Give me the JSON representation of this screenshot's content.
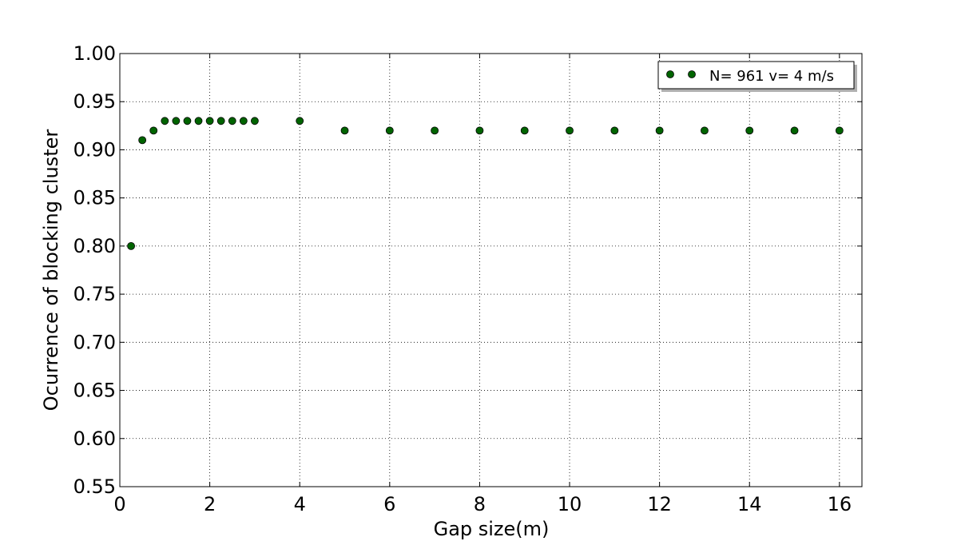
{
  "chart_data": {
    "type": "scatter",
    "xlabel": "Gap size(m)",
    "ylabel": "Ocurrence of blocking cluster",
    "xlim": [
      0,
      16.5
    ],
    "ylim": [
      0.55,
      1.0
    ],
    "xticks": [
      0,
      2,
      4,
      6,
      8,
      10,
      12,
      14,
      16
    ],
    "xtick_labels": [
      "0",
      "2",
      "4",
      "6",
      "8",
      "10",
      "12",
      "14",
      "16"
    ],
    "yticks": [
      0.55,
      0.6,
      0.65,
      0.7,
      0.75,
      0.8,
      0.85,
      0.9,
      0.95,
      1.0
    ],
    "ytick_labels": [
      "0.55",
      "0.60",
      "0.65",
      "0.70",
      "0.75",
      "0.80",
      "0.85",
      "0.90",
      "0.95",
      "1.00"
    ],
    "grid": true,
    "legend_position": "top-right",
    "series": [
      {
        "name": "N= 961 v= 4 m/s",
        "color": "#006400",
        "marker": "circle",
        "x": [
          0.25,
          0.5,
          0.75,
          1.0,
          1.25,
          1.5,
          1.75,
          2.0,
          2.25,
          2.5,
          2.75,
          3.0,
          4,
          5,
          6,
          7,
          8,
          9,
          10,
          11,
          12,
          13,
          14,
          15,
          16
        ],
        "y": [
          0.8,
          0.91,
          0.92,
          0.93,
          0.93,
          0.93,
          0.93,
          0.93,
          0.93,
          0.93,
          0.93,
          0.93,
          0.93,
          0.92,
          0.92,
          0.92,
          0.92,
          0.92,
          0.92,
          0.92,
          0.92,
          0.92,
          0.92,
          0.92,
          0.92
        ]
      }
    ]
  }
}
